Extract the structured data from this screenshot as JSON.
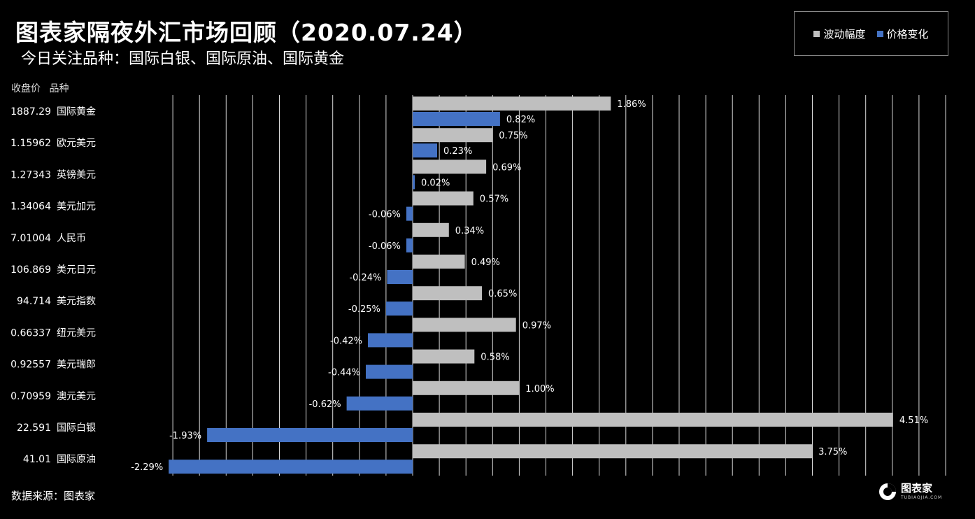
{
  "header": {
    "title": "图表家隔夜外汇市场回顾（2020.07.24）",
    "subtitle": "今日关注品种：国际白银、国际原油、国际黄金",
    "col_price": "收盘价",
    "col_variety": "品种"
  },
  "footer": {
    "source": "数据来源：图表家",
    "logo_text": "图表家",
    "logo_sub": "TUBIAOJIA.COM"
  },
  "colors": {
    "amplitude": "#bfbfbf",
    "change": "#4472c4",
    "grid": "#d9d9d9",
    "background": "#000000"
  },
  "chart_data": {
    "type": "bar",
    "orientation": "horizontal",
    "grid": true,
    "legend_position": "top-right",
    "xlim": [
      -2.4,
      5.0
    ],
    "categories": [
      {
        "price": "1887.29",
        "name": "国际黄金"
      },
      {
        "price": "1.15962",
        "name": "欧元美元"
      },
      {
        "price": "1.27343",
        "name": "英镑美元"
      },
      {
        "price": "1.34064",
        "name": "美元加元"
      },
      {
        "price": "7.01004",
        "name": "人民币"
      },
      {
        "price": "106.869",
        "name": "美元日元"
      },
      {
        "price": "94.714",
        "name": "美元指数"
      },
      {
        "price": "0.66337",
        "name": "纽元美元"
      },
      {
        "price": "0.92557",
        "name": "美元瑞郎"
      },
      {
        "price": "0.70959",
        "name": "澳元美元"
      },
      {
        "price": "22.591",
        "name": "国际白银"
      },
      {
        "price": "41.01",
        "name": "国际原油"
      }
    ],
    "series": [
      {
        "name": "波动幅度",
        "values": [
          1.86,
          0.75,
          0.69,
          0.57,
          0.34,
          0.49,
          0.65,
          0.97,
          0.58,
          1.0,
          4.51,
          3.75
        ],
        "labels": [
          "1.86%",
          "0.75%",
          "0.69%",
          "0.57%",
          "0.34%",
          "0.49%",
          "0.65%",
          "0.97%",
          "0.58%",
          "1.00%",
          "4.51%",
          "3.75%"
        ]
      },
      {
        "name": "价格变化",
        "values": [
          0.82,
          0.23,
          0.02,
          -0.06,
          -0.06,
          -0.24,
          -0.25,
          -0.42,
          -0.44,
          -0.62,
          -1.93,
          -2.29
        ],
        "labels": [
          "0.82%",
          "0.23%",
          "0.02%",
          "-0.06%",
          "-0.06%",
          "-0.24%",
          "-0.25%",
          "-0.42%",
          "-0.44%",
          "-0.62%",
          "-1.93%",
          "-2.29%"
        ]
      }
    ]
  }
}
